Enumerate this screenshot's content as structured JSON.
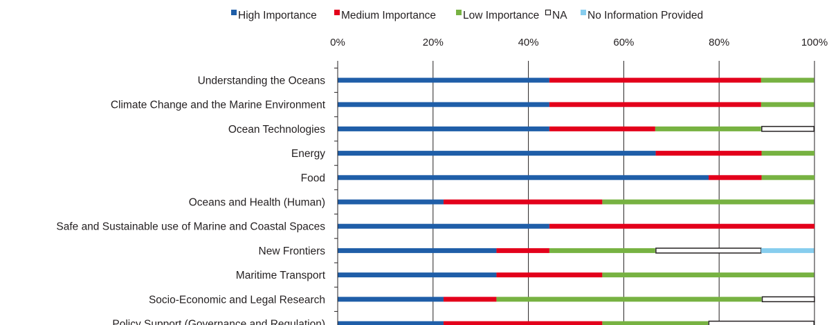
{
  "chart_data": {
    "type": "bar",
    "orientation": "horizontal",
    "stacked": true,
    "title": "",
    "xlabel": "",
    "ylabel": "",
    "xlim": [
      0,
      100
    ],
    "x_ticks": [
      "0%",
      "20%",
      "40%",
      "60%",
      "80%",
      "100%"
    ],
    "x_axis_position": "top",
    "grid": true,
    "legend_position": "top",
    "categories": [
      "Understanding the Oceans",
      "Climate Change and the Marine Environment",
      "Ocean Technologies ",
      "Energy",
      "Food",
      "Oceans and Health (Human)",
      "Safe and Sustainable use of Marine and Coastal Spaces",
      "New Frontiers",
      "Maritime Transport",
      "Socio-Economic and Legal Research",
      "Policy Support (Governance and Regulation)"
    ],
    "series": [
      {
        "name": "High Importance",
        "color": "#1f5ea8",
        "values": [
          44.4,
          44.4,
          44.4,
          66.7,
          77.8,
          22.2,
          44.4,
          33.3,
          33.3,
          22.2,
          22.2
        ]
      },
      {
        "name": "Medium Importance",
        "color": "#e3001b",
        "values": [
          44.4,
          44.4,
          22.2,
          22.2,
          11.1,
          33.3,
          55.6,
          11.1,
          22.2,
          11.1,
          33.3
        ]
      },
      {
        "name": "Low Importance",
        "color": "#77b242",
        "values": [
          11.1,
          11.1,
          22.2,
          11.1,
          11.1,
          44.4,
          0,
          22.2,
          44.4,
          55.6,
          22.2
        ]
      },
      {
        "name": "NA",
        "color": "#ffffff",
        "stroke": "#231f20",
        "values": [
          0,
          0,
          11.1,
          0,
          0,
          0,
          0,
          22.2,
          0,
          11.1,
          22.2
        ]
      },
      {
        "name": "No Information Provided",
        "color": "#87cdee",
        "values": [
          0,
          0,
          0,
          0,
          0,
          0,
          0,
          11.1,
          0,
          0,
          0
        ]
      }
    ]
  }
}
